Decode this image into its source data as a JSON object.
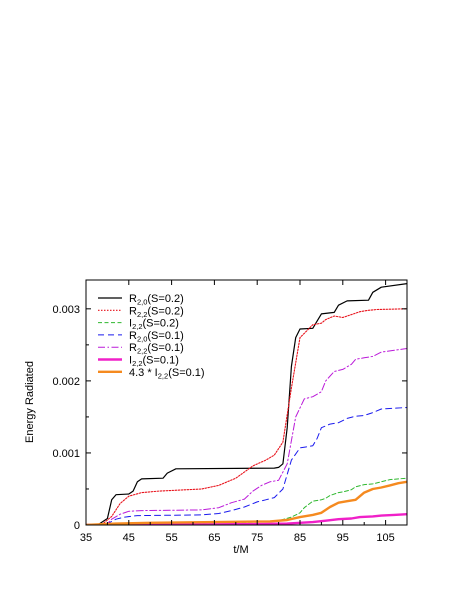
{
  "chart_data": {
    "type": "line",
    "title": "",
    "xlabel": "t/M",
    "ylabel": "Energy Radiated",
    "xlim": [
      35,
      110
    ],
    "ylim": [
      0,
      0.0034
    ],
    "grid": false,
    "legend_position": "top-left",
    "x_ticks": [
      35,
      45,
      55,
      65,
      75,
      85,
      95,
      105
    ],
    "x_tick_labels": [
      "35",
      "45",
      "55",
      "65",
      "75",
      "85",
      "95",
      "105"
    ],
    "y_ticks": [
      0,
      0.001,
      0.002,
      0.003
    ],
    "y_tick_labels": [
      "0",
      "0.001",
      "0.002",
      "0.003"
    ],
    "series": [
      {
        "name": "R2,0(S=0.2)",
        "label_base": "R",
        "label_sub": "2,0",
        "label_tail": "(S=0.2)",
        "color": "#000000",
        "dash": "",
        "width": 1.2,
        "points": [
          [
            35,
            0
          ],
          [
            38,
            1e-05
          ],
          [
            40,
            9e-05
          ],
          [
            41,
            0.00035
          ],
          [
            42,
            0.00042
          ],
          [
            45,
            0.00043
          ],
          [
            46,
            0.00047
          ],
          [
            47,
            0.0006
          ],
          [
            48,
            0.00064
          ],
          [
            53,
            0.00065
          ],
          [
            54,
            0.00072
          ],
          [
            56,
            0.00078
          ],
          [
            79,
            0.00079
          ],
          [
            80,
            0.0008
          ],
          [
            81,
            0.00085
          ],
          [
            82,
            0.00135
          ],
          [
            83,
            0.0022
          ],
          [
            84,
            0.0026
          ],
          [
            85,
            0.00272
          ],
          [
            88,
            0.00273
          ],
          [
            89,
            0.00283
          ],
          [
            90,
            0.00293
          ],
          [
            93,
            0.00295
          ],
          [
            94,
            0.00305
          ],
          [
            96,
            0.00311
          ],
          [
            101,
            0.00312
          ],
          [
            102,
            0.00323
          ],
          [
            104,
            0.0033
          ],
          [
            110,
            0.00335
          ]
        ]
      },
      {
        "name": "R2,2(S=0.2)",
        "label_base": "R",
        "label_sub": "2,2",
        "label_tail": "(S=0.2)",
        "color": "#e8121b",
        "dash": "1.5,1.5",
        "width": 1.1,
        "points": [
          [
            35,
            0
          ],
          [
            39,
            2e-05
          ],
          [
            41,
            0.00012
          ],
          [
            43,
            0.0003
          ],
          [
            45,
            0.0004
          ],
          [
            48,
            0.00045
          ],
          [
            52,
            0.00047
          ],
          [
            62,
            0.0005
          ],
          [
            66,
            0.00055
          ],
          [
            70,
            0.00065
          ],
          [
            74,
            0.00082
          ],
          [
            77,
            0.0009
          ],
          [
            79,
            0.00097
          ],
          [
            81,
            0.00115
          ],
          [
            83,
            0.0019
          ],
          [
            85,
            0.0026
          ],
          [
            87,
            0.00272
          ],
          [
            88,
            0.00278
          ],
          [
            90,
            0.0028
          ],
          [
            91,
            0.00285
          ],
          [
            93,
            0.0029
          ],
          [
            95,
            0.00288
          ],
          [
            97,
            0.00292
          ],
          [
            99,
            0.00296
          ],
          [
            101,
            0.00298
          ],
          [
            103,
            0.00299
          ],
          [
            110,
            0.003
          ]
        ]
      },
      {
        "name": "I2,2(S=0.2)",
        "label_base": "I",
        "label_sub": "2,2",
        "label_tail": "(S=0.2)",
        "color": "#2fb82f",
        "dash": "4,2.5",
        "width": 1.0,
        "points": [
          [
            35,
            0
          ],
          [
            40,
            1e-05
          ],
          [
            45,
            2e-05
          ],
          [
            60,
            3e-05
          ],
          [
            75,
            4e-05
          ],
          [
            80,
            6e-05
          ],
          [
            83,
            0.00011
          ],
          [
            85,
            0.00017
          ],
          [
            86,
            0.00024
          ],
          [
            88,
            0.00033
          ],
          [
            90,
            0.00035
          ],
          [
            91,
            0.00037
          ],
          [
            92,
            0.00041
          ],
          [
            94,
            0.00045
          ],
          [
            95,
            0.00046
          ],
          [
            97,
            0.00049
          ],
          [
            98,
            0.00053
          ],
          [
            100,
            0.00056
          ],
          [
            102,
            0.00057
          ],
          [
            104,
            0.0006
          ],
          [
            106,
            0.00063
          ],
          [
            110,
            0.00065
          ]
        ]
      },
      {
        "name": "R2,0(S=0.1)",
        "label_base": "R",
        "label_sub": "2,0",
        "label_tail": "(S=0.1)",
        "color": "#1a1aee",
        "dash": "6,4",
        "width": 1.0,
        "points": [
          [
            35,
            0
          ],
          [
            40,
            2e-05
          ],
          [
            42,
            8e-05
          ],
          [
            44,
            0.00011
          ],
          [
            47,
            0.00013
          ],
          [
            62,
            0.00014
          ],
          [
            66,
            0.00016
          ],
          [
            69,
            0.0002
          ],
          [
            72,
            0.00025
          ],
          [
            75,
            0.00032
          ],
          [
            77,
            0.00035
          ],
          [
            79,
            0.00038
          ],
          [
            81,
            0.0005
          ],
          [
            83,
            0.0009
          ],
          [
            85,
            0.00107
          ],
          [
            87,
            0.00109
          ],
          [
            88,
            0.0011
          ],
          [
            89,
            0.0012
          ],
          [
            90,
            0.00135
          ],
          [
            92,
            0.0014
          ],
          [
            94,
            0.00142
          ],
          [
            96,
            0.00148
          ],
          [
            98,
            0.00151
          ],
          [
            100,
            0.00152
          ],
          [
            102,
            0.00156
          ],
          [
            104,
            0.00161
          ],
          [
            110,
            0.00163
          ]
        ]
      },
      {
        "name": "R2,2(S=0.1)",
        "label_base": "R",
        "label_sub": "2,2",
        "label_tail": "(S=0.1)",
        "color": "#bb1ad9",
        "dash": "7,2.5,1.5,2.5",
        "width": 1.0,
        "points": [
          [
            35,
            0
          ],
          [
            40,
            2e-05
          ],
          [
            41,
            8e-05
          ],
          [
            43,
            0.00015
          ],
          [
            45,
            0.00019
          ],
          [
            48,
            0.0002
          ],
          [
            62,
            0.00021
          ],
          [
            66,
            0.00024
          ],
          [
            69,
            0.00031
          ],
          [
            72,
            0.00036
          ],
          [
            74,
            0.00047
          ],
          [
            76,
            0.00055
          ],
          [
            78,
            0.0006
          ],
          [
            80,
            0.00062
          ],
          [
            82,
            0.00085
          ],
          [
            84,
            0.0015
          ],
          [
            86,
            0.00175
          ],
          [
            88,
            0.00178
          ],
          [
            90,
            0.00185
          ],
          [
            91,
            0.002
          ],
          [
            93,
            0.00213
          ],
          [
            95,
            0.00216
          ],
          [
            97,
            0.00223
          ],
          [
            98,
            0.0023
          ],
          [
            100,
            0.00232
          ],
          [
            102,
            0.00234
          ],
          [
            104,
            0.0024
          ],
          [
            110,
            0.00245
          ]
        ]
      },
      {
        "name": "I2,2(S=0.1)",
        "label_base": "I",
        "label_sub": "2,2",
        "label_tail": "(S=0.1)",
        "color": "#f020c8",
        "dash": "",
        "width": 2.4,
        "points": [
          [
            35,
            0
          ],
          [
            45,
            3e-06
          ],
          [
            60,
            8e-06
          ],
          [
            75,
            1.2e-05
          ],
          [
            82,
            2e-05
          ],
          [
            85,
            3e-05
          ],
          [
            88,
            4e-05
          ],
          [
            91,
            6e-05
          ],
          [
            94,
            8e-05
          ],
          [
            97,
            9e-05
          ],
          [
            99,
            0.00011
          ],
          [
            102,
            0.00012
          ],
          [
            104,
            0.00013
          ],
          [
            107,
            0.00014
          ],
          [
            110,
            0.00015
          ]
        ]
      },
      {
        "name": "4.3 * I2,2(S=0.1)",
        "label_base": "4.3 * I",
        "label_sub": "2,2",
        "label_tail": "(S=0.1)",
        "color": "#f58a1f",
        "dash": "",
        "width": 2.4,
        "points": [
          [
            35,
            0
          ],
          [
            42,
            2e-05
          ],
          [
            50,
            3e-05
          ],
          [
            65,
            4e-05
          ],
          [
            78,
            5e-05
          ],
          [
            82,
            7e-05
          ],
          [
            85,
            0.00011
          ],
          [
            88,
            0.00014
          ],
          [
            90,
            0.00017
          ],
          [
            92,
            0.00025
          ],
          [
            94,
            0.00031
          ],
          [
            96,
            0.00033
          ],
          [
            98,
            0.00035
          ],
          [
            100,
            0.00045
          ],
          [
            102,
            0.0005
          ],
          [
            104,
            0.00052
          ],
          [
            106,
            0.00055
          ],
          [
            108,
            0.00058
          ],
          [
            110,
            0.0006
          ]
        ]
      }
    ]
  }
}
